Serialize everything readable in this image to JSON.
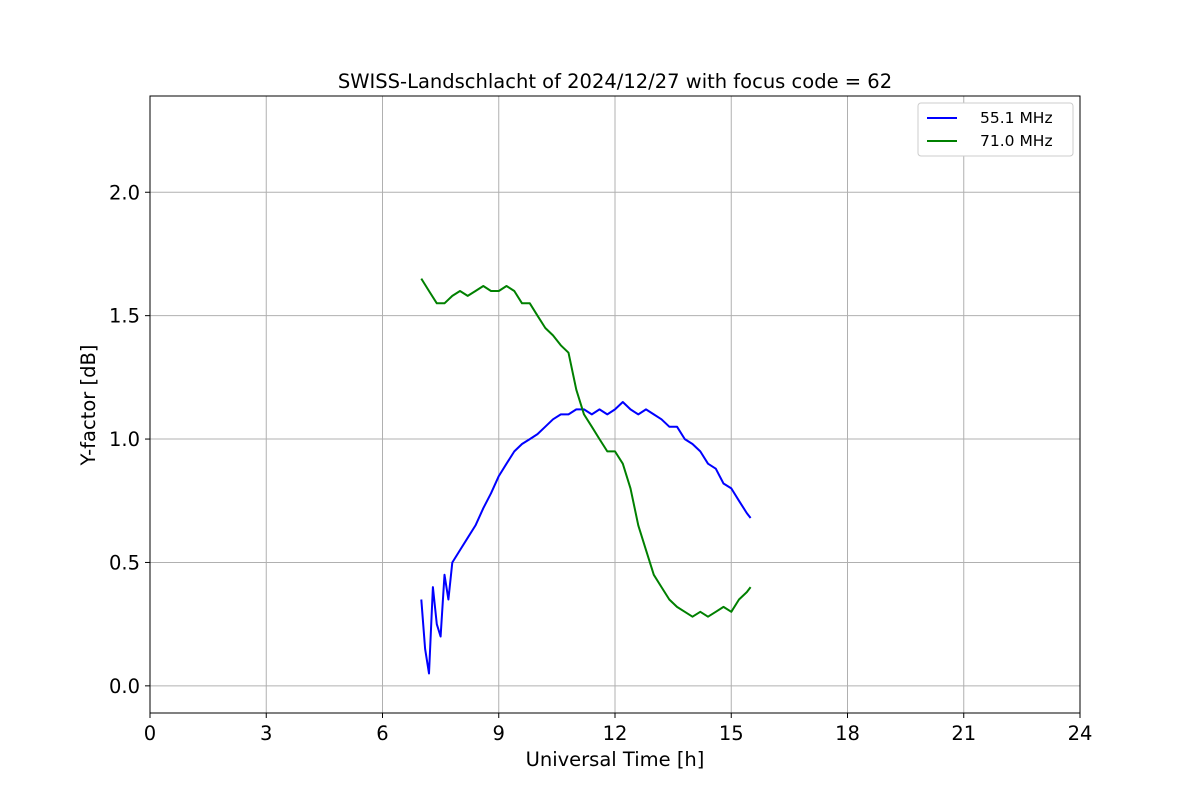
{
  "chart_data": {
    "type": "line",
    "title": "SWISS-Landschlacht of 2024/12/27 with focus code = 62",
    "xlabel": "Universal Time [h]",
    "ylabel": "Y-factor [dB]",
    "xlim": [
      0,
      24
    ],
    "ylim": [
      -0.11,
      2.39
    ],
    "xticks": [
      0,
      3,
      6,
      9,
      12,
      15,
      18,
      21,
      24
    ],
    "yticks": [
      0.0,
      0.5,
      1.0,
      1.5,
      2.0
    ],
    "xtick_labels": [
      "0",
      "3",
      "6",
      "9",
      "12",
      "15",
      "18",
      "21",
      "24"
    ],
    "ytick_labels": [
      "0.0",
      "0.5",
      "1.0",
      "1.5",
      "2.0"
    ],
    "grid": true,
    "legend_position": "top-right",
    "series": [
      {
        "name": "55.1 MHz",
        "color": "#0000ff",
        "points": [
          [
            7.0,
            0.35
          ],
          [
            7.1,
            0.15
          ],
          [
            7.2,
            0.05
          ],
          [
            7.3,
            0.4
          ],
          [
            7.4,
            0.25
          ],
          [
            7.5,
            0.2
          ],
          [
            7.6,
            0.45
          ],
          [
            7.7,
            0.35
          ],
          [
            7.8,
            0.5
          ],
          [
            8.0,
            0.55
          ],
          [
            8.2,
            0.6
          ],
          [
            8.4,
            0.65
          ],
          [
            8.6,
            0.72
          ],
          [
            8.8,
            0.78
          ],
          [
            9.0,
            0.85
          ],
          [
            9.2,
            0.9
          ],
          [
            9.4,
            0.95
          ],
          [
            9.6,
            0.98
          ],
          [
            9.8,
            1.0
          ],
          [
            10.0,
            1.02
          ],
          [
            10.2,
            1.05
          ],
          [
            10.4,
            1.08
          ],
          [
            10.6,
            1.1
          ],
          [
            10.8,
            1.1
          ],
          [
            11.0,
            1.12
          ],
          [
            11.2,
            1.12
          ],
          [
            11.4,
            1.1
          ],
          [
            11.6,
            1.12
          ],
          [
            11.8,
            1.1
          ],
          [
            12.0,
            1.12
          ],
          [
            12.2,
            1.15
          ],
          [
            12.4,
            1.12
          ],
          [
            12.6,
            1.1
          ],
          [
            12.8,
            1.12
          ],
          [
            13.0,
            1.1
          ],
          [
            13.2,
            1.08
          ],
          [
            13.4,
            1.05
          ],
          [
            13.6,
            1.05
          ],
          [
            13.8,
            1.0
          ],
          [
            14.0,
            0.98
          ],
          [
            14.2,
            0.95
          ],
          [
            14.4,
            0.9
          ],
          [
            14.6,
            0.88
          ],
          [
            14.8,
            0.82
          ],
          [
            15.0,
            0.8
          ],
          [
            15.2,
            0.75
          ],
          [
            15.4,
            0.7
          ],
          [
            15.5,
            0.68
          ]
        ]
      },
      {
        "name": "71.0 MHz",
        "color": "#008000",
        "points": [
          [
            7.0,
            1.65
          ],
          [
            7.2,
            1.6
          ],
          [
            7.4,
            1.55
          ],
          [
            7.6,
            1.55
          ],
          [
            7.8,
            1.58
          ],
          [
            8.0,
            1.6
          ],
          [
            8.2,
            1.58
          ],
          [
            8.4,
            1.6
          ],
          [
            8.6,
            1.62
          ],
          [
            8.8,
            1.6
          ],
          [
            9.0,
            1.6
          ],
          [
            9.2,
            1.62
          ],
          [
            9.4,
            1.6
          ],
          [
            9.6,
            1.55
          ],
          [
            9.8,
            1.55
          ],
          [
            10.0,
            1.5
          ],
          [
            10.2,
            1.45
          ],
          [
            10.4,
            1.42
          ],
          [
            10.6,
            1.38
          ],
          [
            10.8,
            1.35
          ],
          [
            11.0,
            1.2
          ],
          [
            11.2,
            1.1
          ],
          [
            11.4,
            1.05
          ],
          [
            11.6,
            1.0
          ],
          [
            11.8,
            0.95
          ],
          [
            12.0,
            0.95
          ],
          [
            12.2,
            0.9
          ],
          [
            12.4,
            0.8
          ],
          [
            12.6,
            0.65
          ],
          [
            12.8,
            0.55
          ],
          [
            13.0,
            0.45
          ],
          [
            13.2,
            0.4
          ],
          [
            13.4,
            0.35
          ],
          [
            13.6,
            0.32
          ],
          [
            13.8,
            0.3
          ],
          [
            14.0,
            0.28
          ],
          [
            14.2,
            0.3
          ],
          [
            14.4,
            0.28
          ],
          [
            14.6,
            0.3
          ],
          [
            14.8,
            0.32
          ],
          [
            15.0,
            0.3
          ],
          [
            15.2,
            0.35
          ],
          [
            15.4,
            0.38
          ],
          [
            15.5,
            0.4
          ]
        ]
      }
    ]
  }
}
